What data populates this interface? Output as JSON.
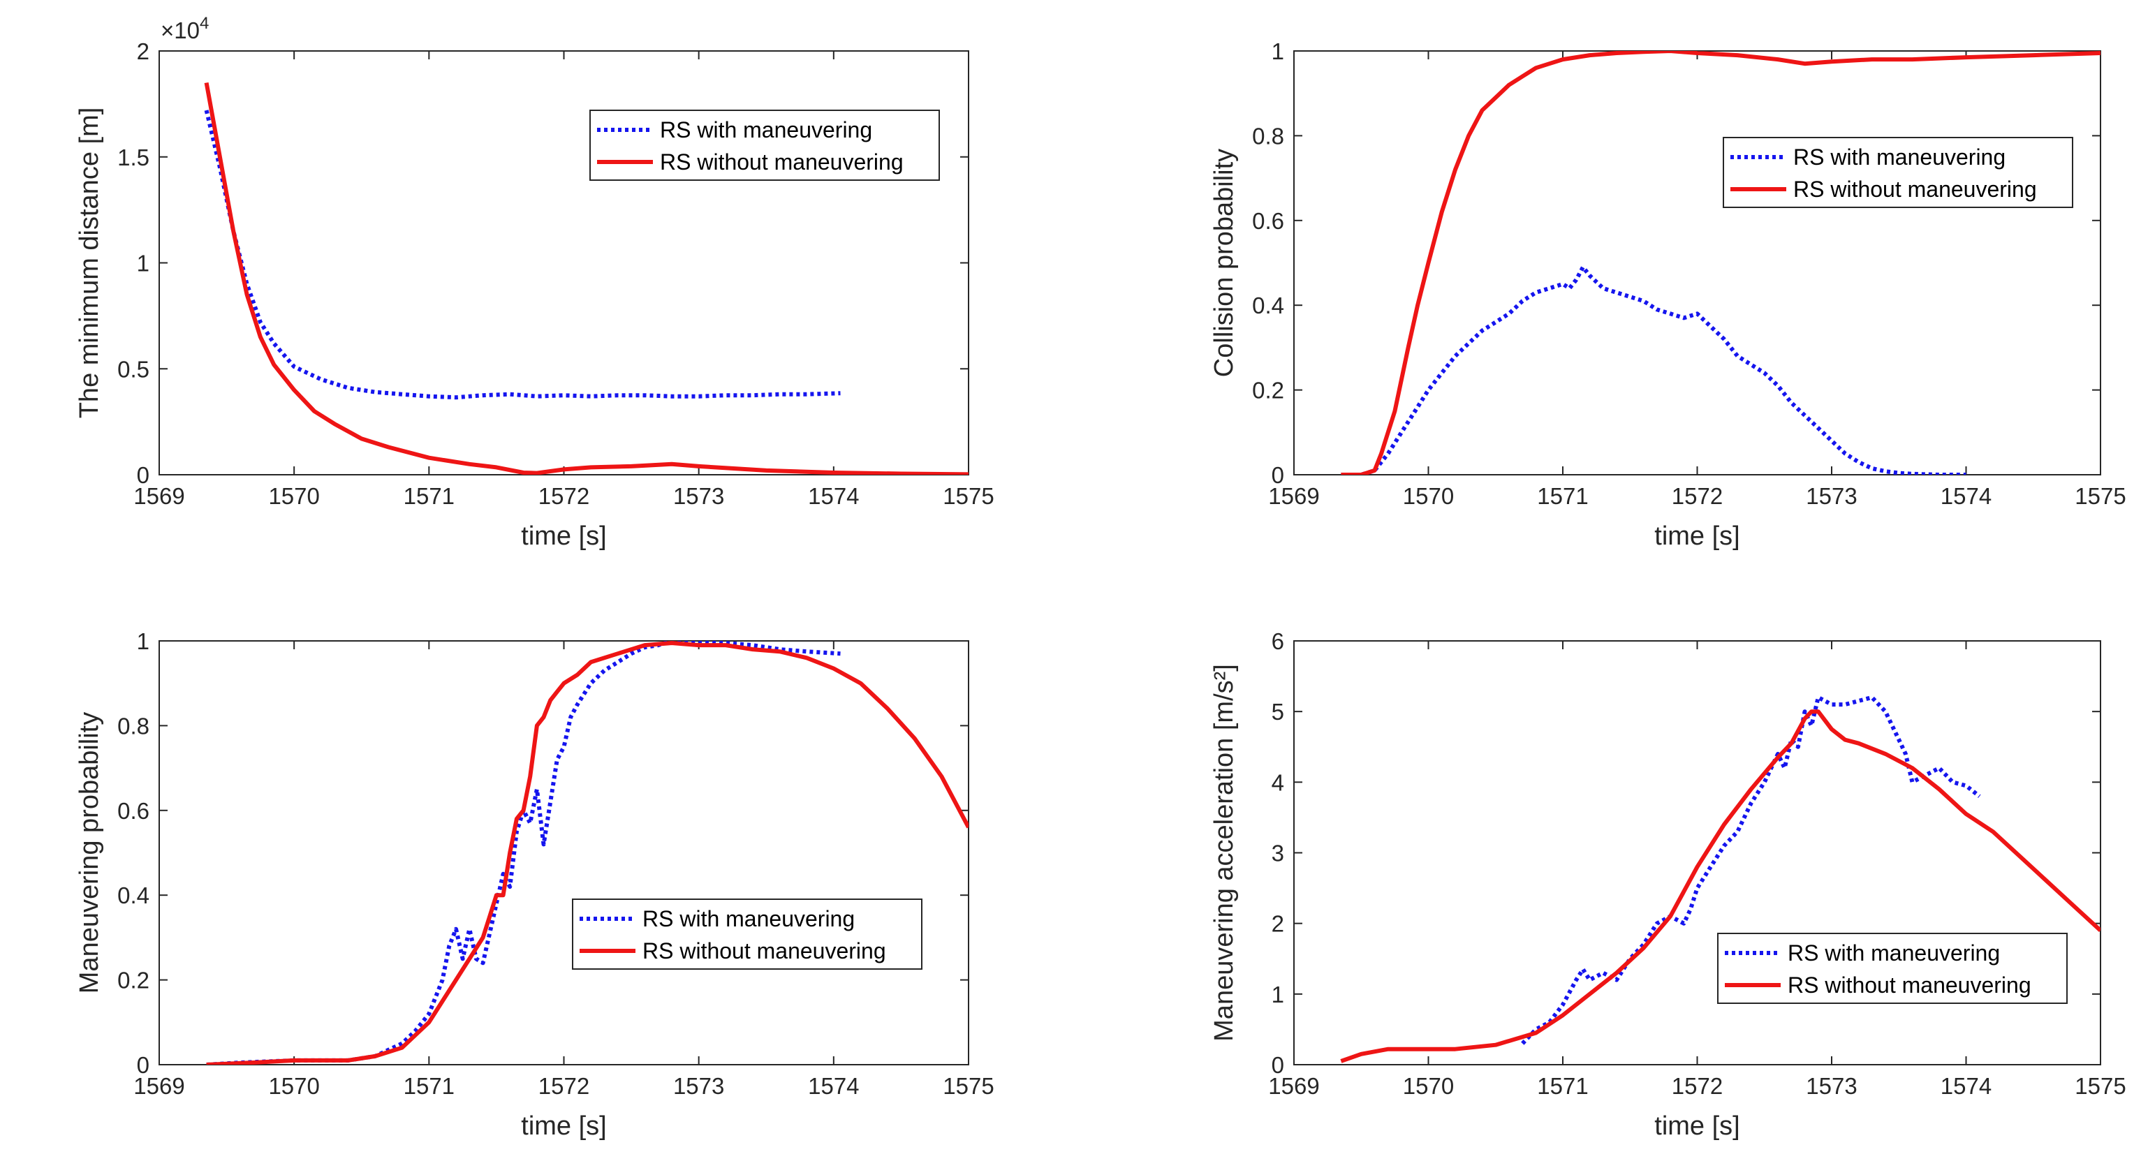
{
  "colors": {
    "with": "#1515ee",
    "without": "#ee1515",
    "axis": "#262626"
  },
  "chart_data": [
    {
      "type": "line",
      "xlabel": "time [s]",
      "ylabel": "The minimum distance [m]",
      "xlim": [
        1569,
        1575
      ],
      "ylim": [
        0,
        20000
      ],
      "xticks": [
        1569,
        1570,
        1571,
        1572,
        1573,
        1574,
        1575
      ],
      "yticks": [
        0,
        5000,
        10000,
        15000,
        20000
      ],
      "ytick_labels": [
        "0",
        "0.5",
        "1",
        "1.5",
        "2"
      ],
      "y_exponent_base": "×10",
      "y_exponent_power": "4",
      "legend": "top-right",
      "series": [
        {
          "name": "RS with maneuvering",
          "style": "dotted",
          "x": [
            1569.35,
            1569.45,
            1569.55,
            1569.65,
            1569.75,
            1569.85,
            1570.0,
            1570.2,
            1570.4,
            1570.6,
            1570.8,
            1571.0,
            1571.2,
            1571.4,
            1571.6,
            1571.8,
            1572.0,
            1572.2,
            1572.4,
            1572.6,
            1572.8,
            1573.0,
            1573.2,
            1573.4,
            1573.6,
            1573.8,
            1574.05
          ],
          "y": [
            17200,
            14500,
            11500,
            9000,
            7200,
            6200,
            5100,
            4500,
            4100,
            3900,
            3800,
            3700,
            3650,
            3750,
            3800,
            3700,
            3750,
            3700,
            3750,
            3750,
            3700,
            3700,
            3750,
            3750,
            3800,
            3800,
            3850
          ]
        },
        {
          "name": "RS without maneuvering",
          "style": "solid",
          "x": [
            1569.35,
            1569.45,
            1569.55,
            1569.65,
            1569.75,
            1569.85,
            1570.0,
            1570.15,
            1570.3,
            1570.5,
            1570.7,
            1571.0,
            1571.3,
            1571.5,
            1571.7,
            1571.8,
            1572.0,
            1572.2,
            1572.5,
            1572.8,
            1573.0,
            1573.5,
            1574.0,
            1574.5,
            1575.0
          ],
          "y": [
            18500,
            15000,
            11500,
            8500,
            6500,
            5200,
            4000,
            3000,
            2400,
            1700,
            1300,
            800,
            500,
            350,
            100,
            80,
            250,
            350,
            400,
            500,
            400,
            200,
            100,
            50,
            20
          ]
        }
      ]
    },
    {
      "type": "line",
      "xlabel": "time [s]",
      "ylabel": "Collision probability",
      "xlim": [
        1569,
        1575
      ],
      "ylim": [
        0,
        1
      ],
      "xticks": [
        1569,
        1570,
        1571,
        1572,
        1573,
        1574,
        1575
      ],
      "yticks": [
        0,
        0.2,
        0.4,
        0.6,
        0.8,
        1
      ],
      "ytick_labels": [
        "0",
        "0.2",
        "0.4",
        "0.6",
        "0.8",
        "1"
      ],
      "legend": "top-right",
      "series": [
        {
          "name": "RS with maneuvering",
          "style": "dotted",
          "x": [
            1569.35,
            1569.5,
            1569.6,
            1569.7,
            1569.8,
            1569.9,
            1570.0,
            1570.1,
            1570.2,
            1570.3,
            1570.4,
            1570.5,
            1570.6,
            1570.7,
            1570.8,
            1570.9,
            1571.0,
            1571.05,
            1571.1,
            1571.15,
            1571.2,
            1571.3,
            1571.4,
            1571.5,
            1571.6,
            1571.7,
            1571.8,
            1571.9,
            1572.0,
            1572.1,
            1572.2,
            1572.3,
            1572.4,
            1572.5,
            1572.6,
            1572.7,
            1572.8,
            1572.9,
            1573.0,
            1573.1,
            1573.2,
            1573.3,
            1573.4,
            1573.5,
            1573.6,
            1573.8,
            1574.0
          ],
          "y": [
            0,
            0,
            0.01,
            0.05,
            0.1,
            0.15,
            0.2,
            0.24,
            0.28,
            0.31,
            0.34,
            0.36,
            0.38,
            0.41,
            0.43,
            0.44,
            0.45,
            0.44,
            0.46,
            0.49,
            0.47,
            0.44,
            0.43,
            0.42,
            0.41,
            0.39,
            0.38,
            0.37,
            0.38,
            0.35,
            0.32,
            0.28,
            0.26,
            0.24,
            0.21,
            0.17,
            0.14,
            0.11,
            0.08,
            0.05,
            0.03,
            0.015,
            0.008,
            0.004,
            0.002,
            0,
            0
          ]
        },
        {
          "name": "RS without maneuvering",
          "style": "solid",
          "x": [
            1569.35,
            1569.5,
            1569.6,
            1569.65,
            1569.75,
            1569.85,
            1569.92,
            1570.0,
            1570.1,
            1570.2,
            1570.3,
            1570.4,
            1570.5,
            1570.6,
            1570.7,
            1570.8,
            1570.9,
            1571.0,
            1571.2,
            1571.4,
            1571.6,
            1571.8,
            1572.0,
            1572.3,
            1572.6,
            1572.8,
            1573.0,
            1573.3,
            1573.6,
            1574.0,
            1574.5,
            1575.0
          ],
          "y": [
            0,
            0,
            0.01,
            0.05,
            0.15,
            0.3,
            0.4,
            0.5,
            0.62,
            0.72,
            0.8,
            0.86,
            0.89,
            0.92,
            0.94,
            0.96,
            0.97,
            0.98,
            0.99,
            0.995,
            0.998,
            1.0,
            0.995,
            0.99,
            0.98,
            0.97,
            0.975,
            0.98,
            0.98,
            0.985,
            0.99,
            0.995
          ]
        }
      ]
    },
    {
      "type": "line",
      "xlabel": "time [s]",
      "ylabel": "Maneuvering probability",
      "xlim": [
        1569,
        1575
      ],
      "ylim": [
        0,
        1
      ],
      "xticks": [
        1569,
        1570,
        1571,
        1572,
        1573,
        1574,
        1575
      ],
      "yticks": [
        0,
        0.2,
        0.4,
        0.6,
        0.8,
        1
      ],
      "ytick_labels": [
        "0",
        "0.2",
        "0.4",
        "0.6",
        "0.8",
        "1"
      ],
      "legend": "bottom-right",
      "series": [
        {
          "name": "RS with maneuvering",
          "style": "dotted",
          "x": [
            1569.35,
            1569.6,
            1570.0,
            1570.4,
            1570.6,
            1570.8,
            1570.9,
            1571.0,
            1571.1,
            1571.15,
            1571.2,
            1571.25,
            1571.3,
            1571.35,
            1571.4,
            1571.5,
            1571.55,
            1571.6,
            1571.65,
            1571.7,
            1571.75,
            1571.8,
            1571.85,
            1571.9,
            1571.95,
            1572.0,
            1572.05,
            1572.1,
            1572.2,
            1572.3,
            1572.4,
            1572.5,
            1572.6,
            1572.7,
            1572.8,
            1573.0,
            1573.2,
            1573.4,
            1573.6,
            1573.8,
            1574.05
          ],
          "y": [
            0,
            0.005,
            0.01,
            0.01,
            0.02,
            0.05,
            0.08,
            0.12,
            0.2,
            0.28,
            0.32,
            0.25,
            0.32,
            0.25,
            0.24,
            0.38,
            0.45,
            0.42,
            0.55,
            0.6,
            0.57,
            0.65,
            0.52,
            0.62,
            0.72,
            0.75,
            0.82,
            0.85,
            0.9,
            0.93,
            0.95,
            0.97,
            0.985,
            0.99,
            1.0,
            1.0,
            0.995,
            0.99,
            0.98,
            0.975,
            0.97
          ]
        },
        {
          "name": "RS without maneuvering",
          "style": "solid",
          "x": [
            1569.35,
            1569.7,
            1570.0,
            1570.4,
            1570.6,
            1570.8,
            1570.9,
            1571.0,
            1571.1,
            1571.2,
            1571.3,
            1571.4,
            1571.45,
            1571.5,
            1571.55,
            1571.6,
            1571.65,
            1571.7,
            1571.75,
            1571.8,
            1571.85,
            1571.9,
            1571.95,
            1572.0,
            1572.1,
            1572.2,
            1572.4,
            1572.6,
            1572.8,
            1573.0,
            1573.2,
            1573.4,
            1573.6,
            1573.8,
            1574.0,
            1574.2,
            1574.4,
            1574.6,
            1574.8,
            1575.0
          ],
          "y": [
            0,
            0.005,
            0.01,
            0.01,
            0.02,
            0.04,
            0.07,
            0.1,
            0.15,
            0.2,
            0.25,
            0.3,
            0.35,
            0.4,
            0.4,
            0.5,
            0.58,
            0.6,
            0.68,
            0.8,
            0.82,
            0.86,
            0.88,
            0.9,
            0.92,
            0.95,
            0.97,
            0.99,
            0.995,
            0.99,
            0.99,
            0.98,
            0.975,
            0.96,
            0.935,
            0.9,
            0.84,
            0.77,
            0.68,
            0.56
          ]
        }
      ]
    },
    {
      "type": "line",
      "xlabel": "time [s]",
      "ylabel": "Maneuvering acceleration [m/s²]",
      "xlim": [
        1569,
        1575
      ],
      "ylim": [
        0,
        6
      ],
      "xticks": [
        1569,
        1570,
        1571,
        1572,
        1573,
        1574,
        1575
      ],
      "yticks": [
        0,
        1,
        2,
        3,
        4,
        5,
        6
      ],
      "ytick_labels": [
        "0",
        "1",
        "2",
        "3",
        "4",
        "5",
        "6"
      ],
      "legend": "bottom-right",
      "series": [
        {
          "name": "RS with maneuvering",
          "style": "dotted",
          "x": [
            1570.7,
            1570.8,
            1570.9,
            1571.0,
            1571.1,
            1571.15,
            1571.2,
            1571.3,
            1571.4,
            1571.5,
            1571.6,
            1571.7,
            1571.8,
            1571.9,
            1571.95,
            1572.0,
            1572.1,
            1572.2,
            1572.3,
            1572.4,
            1572.5,
            1572.6,
            1572.65,
            1572.7,
            1572.75,
            1572.8,
            1572.85,
            1572.9,
            1573.0,
            1573.1,
            1573.2,
            1573.3,
            1573.4,
            1573.5,
            1573.55,
            1573.6,
            1573.7,
            1573.8,
            1573.9,
            1574.0,
            1574.1
          ],
          "y": [
            0.3,
            0.5,
            0.6,
            0.85,
            1.2,
            1.35,
            1.2,
            1.3,
            1.2,
            1.5,
            1.7,
            2.0,
            2.1,
            2.0,
            2.2,
            2.5,
            2.8,
            3.1,
            3.3,
            3.7,
            4.0,
            4.4,
            4.2,
            4.6,
            4.5,
            5.0,
            4.8,
            5.2,
            5.1,
            5.1,
            5.15,
            5.2,
            5.0,
            4.6,
            4.4,
            4.0,
            4.1,
            4.2,
            4.0,
            3.95,
            3.8
          ]
        },
        {
          "name": "RS without maneuvering",
          "style": "solid",
          "x": [
            1569.35,
            1569.5,
            1569.7,
            1570.0,
            1570.2,
            1570.5,
            1570.8,
            1571.0,
            1571.2,
            1571.4,
            1571.6,
            1571.8,
            1572.0,
            1572.2,
            1572.4,
            1572.6,
            1572.7,
            1572.8,
            1572.85,
            1572.9,
            1573.0,
            1573.1,
            1573.2,
            1573.4,
            1573.6,
            1573.8,
            1574.0,
            1574.2,
            1574.4,
            1574.6,
            1574.8,
            1575.0
          ],
          "y": [
            0.05,
            0.15,
            0.22,
            0.22,
            0.22,
            0.28,
            0.45,
            0.7,
            1.0,
            1.3,
            1.65,
            2.1,
            2.8,
            3.4,
            3.9,
            4.35,
            4.55,
            4.9,
            5.0,
            5.0,
            4.75,
            4.6,
            4.55,
            4.4,
            4.2,
            3.9,
            3.55,
            3.3,
            2.95,
            2.6,
            2.25,
            1.9
          ]
        }
      ]
    }
  ]
}
